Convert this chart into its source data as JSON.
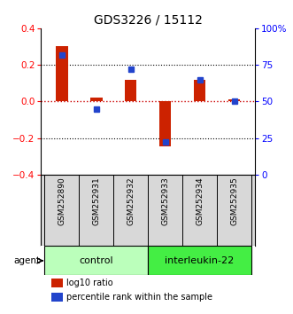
{
  "title": "GDS3226 / 15112",
  "samples": [
    "GSM252890",
    "GSM252931",
    "GSM252932",
    "GSM252933",
    "GSM252934",
    "GSM252935"
  ],
  "log10_ratio": [
    0.3,
    0.02,
    0.12,
    -0.245,
    0.12,
    0.01
  ],
  "percentile_rank": [
    82,
    45,
    72,
    22,
    65,
    50
  ],
  "left_ylim": [
    -0.4,
    0.4
  ],
  "right_ylim": [
    0,
    100
  ],
  "left_yticks": [
    -0.4,
    -0.2,
    0.0,
    0.2,
    0.4
  ],
  "right_yticks": [
    0,
    25,
    50,
    75,
    100
  ],
  "right_yticklabels": [
    "0",
    "25",
    "50",
    "75",
    "100%"
  ],
  "groups": [
    {
      "label": "control",
      "start": 0,
      "end": 3,
      "color": "#bbffbb"
    },
    {
      "label": "interleukin-22",
      "start": 3,
      "end": 6,
      "color": "#44ee44"
    }
  ],
  "bar_color": "#cc2200",
  "marker_color": "#2244cc",
  "legend_bar_label": "log10 ratio",
  "legend_marker_label": "percentile rank within the sample",
  "agent_label": "agent",
  "dotted_line_color": "#cc0000",
  "title_fontsize": 10,
  "tick_fontsize": 7.5,
  "sample_fontsize": 6.5,
  "group_fontsize": 8,
  "legend_fontsize": 7
}
